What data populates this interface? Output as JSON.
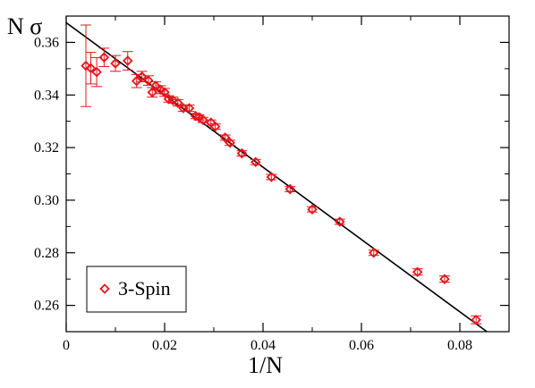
{
  "chart_data": {
    "type": "scatter",
    "xlabel": "1/N",
    "ylabel": "N σ",
    "xlim": [
      0,
      0.09
    ],
    "ylim": [
      0.25,
      0.37
    ],
    "x_ticks": [
      0,
      0.02,
      0.04,
      0.06,
      0.08
    ],
    "x_tick_labels": [
      "0",
      "0.02",
      "0.04",
      "0.06",
      "0.08"
    ],
    "y_ticks": [
      0.26,
      0.28,
      0.3,
      0.32,
      0.34,
      0.36
    ],
    "y_tick_labels": [
      "0.26",
      "0.28",
      "0.30",
      "0.32",
      "0.34",
      "0.36"
    ],
    "grid": false,
    "legend_position": "bottom-left",
    "series": [
      {
        "name": "3-Spin",
        "color": "#e8141c",
        "marker": "diamond-open",
        "points": [
          {
            "x": 0.004,
            "y": 0.3511,
            "err": 0.0155
          },
          {
            "x": 0.005,
            "y": 0.3502,
            "err": 0.006
          },
          {
            "x": 0.0062,
            "y": 0.3487,
            "err": 0.0055
          },
          {
            "x": 0.0077,
            "y": 0.3543,
            "err": 0.0035
          },
          {
            "x": 0.01,
            "y": 0.352,
            "err": 0.003
          },
          {
            "x": 0.0125,
            "y": 0.353,
            "err": 0.0035
          },
          {
            "x": 0.0143,
            "y": 0.3453,
            "err": 0.0025
          },
          {
            "x": 0.0154,
            "y": 0.347,
            "err": 0.002
          },
          {
            "x": 0.0167,
            "y": 0.3455,
            "err": 0.0018
          },
          {
            "x": 0.0175,
            "y": 0.341,
            "err": 0.0018
          },
          {
            "x": 0.0182,
            "y": 0.3435,
            "err": 0.0015
          },
          {
            "x": 0.0192,
            "y": 0.342,
            "err": 0.0015
          },
          {
            "x": 0.02,
            "y": 0.341,
            "err": 0.0015
          },
          {
            "x": 0.0208,
            "y": 0.3385,
            "err": 0.0012
          },
          {
            "x": 0.0217,
            "y": 0.338,
            "err": 0.0012
          },
          {
            "x": 0.0227,
            "y": 0.337,
            "err": 0.0012
          },
          {
            "x": 0.0238,
            "y": 0.335,
            "err": 0.0012
          },
          {
            "x": 0.025,
            "y": 0.335,
            "err": 0.0012
          },
          {
            "x": 0.0263,
            "y": 0.332,
            "err": 0.001
          },
          {
            "x": 0.027,
            "y": 0.3315,
            "err": 0.001
          },
          {
            "x": 0.0278,
            "y": 0.3305,
            "err": 0.001
          },
          {
            "x": 0.0294,
            "y": 0.3295,
            "err": 0.001
          },
          {
            "x": 0.0303,
            "y": 0.328,
            "err": 0.001
          },
          {
            "x": 0.0323,
            "y": 0.3238,
            "err": 0.001
          },
          {
            "x": 0.0333,
            "y": 0.3218,
            "err": 0.001
          },
          {
            "x": 0.0357,
            "y": 0.3178,
            "err": 0.001
          },
          {
            "x": 0.0385,
            "y": 0.3145,
            "err": 0.001
          },
          {
            "x": 0.0417,
            "y": 0.3088,
            "err": 0.001
          },
          {
            "x": 0.0455,
            "y": 0.3042,
            "err": 0.001
          },
          {
            "x": 0.05,
            "y": 0.2965,
            "err": 0.001
          },
          {
            "x": 0.0556,
            "y": 0.2918,
            "err": 0.001
          },
          {
            "x": 0.0625,
            "y": 0.28,
            "err": 0.001
          },
          {
            "x": 0.0714,
            "y": 0.2727,
            "err": 0.0012
          },
          {
            "x": 0.0769,
            "y": 0.27,
            "err": 0.0012
          },
          {
            "x": 0.0833,
            "y": 0.2545,
            "err": 0.0015
          }
        ]
      }
    ],
    "fit_line": {
      "x": [
        0,
        0.0855
      ],
      "y": [
        0.3675,
        0.25
      ],
      "color": "#000000"
    }
  }
}
